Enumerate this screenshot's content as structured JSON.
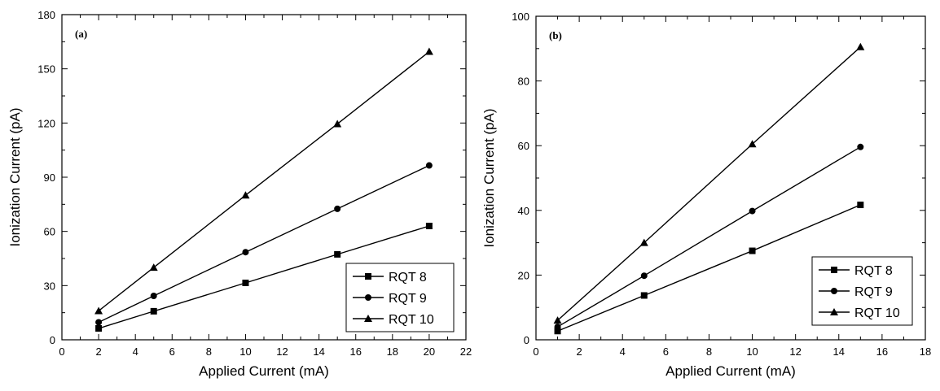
{
  "chart_data": [
    {
      "type": "line",
      "panel_label": "(a)",
      "xlabel": "Applied Current (mA)",
      "ylabel": "Ionization Current (pA)",
      "xlim": [
        0,
        22
      ],
      "ylim": [
        0,
        180
      ],
      "xticks": [
        "0",
        "2",
        "4",
        "6",
        "8",
        "10",
        "12",
        "14",
        "16",
        "18",
        "20",
        "22"
      ],
      "yticks": [
        "0",
        "30",
        "60",
        "90",
        "120",
        "150",
        "180"
      ],
      "grid": false,
      "legend_position": "bottom-right",
      "series": [
        {
          "name": "RQT 8",
          "marker": "square",
          "x": [
            2,
            5,
            10,
            15,
            20
          ],
          "y": [
            6.3,
            15.8,
            31.5,
            47.3,
            63
          ]
        },
        {
          "name": "RQT 9",
          "marker": "circle",
          "x": [
            2,
            5,
            10,
            15,
            20
          ],
          "y": [
            9.7,
            24.3,
            48.5,
            72.5,
            96.5
          ]
        },
        {
          "name": "RQT 10",
          "marker": "triangle",
          "x": [
            2,
            5,
            10,
            15,
            20
          ],
          "y": [
            16,
            40,
            80,
            119.5,
            159.5
          ]
        }
      ]
    },
    {
      "type": "line",
      "panel_label": "(b)",
      "xlabel": "Applied Current (mA)",
      "ylabel": "Ionization Current (pA)",
      "xlim": [
        0,
        18
      ],
      "ylim": [
        0,
        100
      ],
      "xticks": [
        "0",
        "2",
        "4",
        "6",
        "8",
        "10",
        "12",
        "14",
        "16",
        "18"
      ],
      "yticks": [
        "0",
        "20",
        "40",
        "60",
        "80",
        "100"
      ],
      "grid": false,
      "legend_position": "bottom-right",
      "series": [
        {
          "name": "RQT 8",
          "marker": "square",
          "x": [
            1,
            5,
            10,
            15
          ],
          "y": [
            2.7,
            13.7,
            27.5,
            41.7
          ]
        },
        {
          "name": "RQT 9",
          "marker": "circle",
          "x": [
            1,
            5,
            10,
            15
          ],
          "y": [
            4,
            19.8,
            39.8,
            59.6
          ]
        },
        {
          "name": "RQT 10",
          "marker": "triangle",
          "x": [
            1,
            5,
            10,
            15
          ],
          "y": [
            6,
            30,
            60.5,
            90.5
          ]
        }
      ]
    }
  ]
}
